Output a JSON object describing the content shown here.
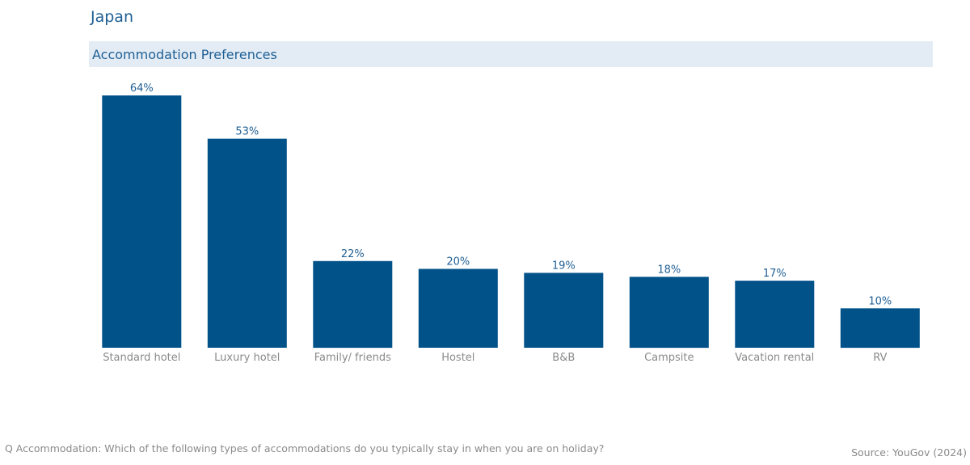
{
  "header": {
    "title": "Japan",
    "subtitle": "Accommodation Preferences"
  },
  "footer": {
    "question": "Q Accommodation: Which of the following types of accommodations do you typically stay in when you are on holiday?",
    "source": "Source: YouGov (2024)"
  },
  "colors": {
    "bar": "#02528a",
    "data_label": "#1f5f94",
    "category_label": "#8a8a8a"
  },
  "chart_data": {
    "type": "bar",
    "categories": [
      "Standard hotel",
      "Luxury hotel",
      "Family/ friends",
      "Hostel",
      "B&B",
      "Campsite",
      "Vacation rental",
      "RV"
    ],
    "values": [
      64,
      53,
      22,
      20,
      19,
      18,
      17,
      10
    ],
    "value_labels": [
      "64%",
      "53%",
      "22%",
      "20%",
      "19%",
      "18%",
      "17%",
      "10%"
    ],
    "title": "Accommodation Preferences",
    "xlabel": "",
    "ylabel": "",
    "ylim": [
      0,
      64
    ],
    "grid": false,
    "legend": "none"
  }
}
